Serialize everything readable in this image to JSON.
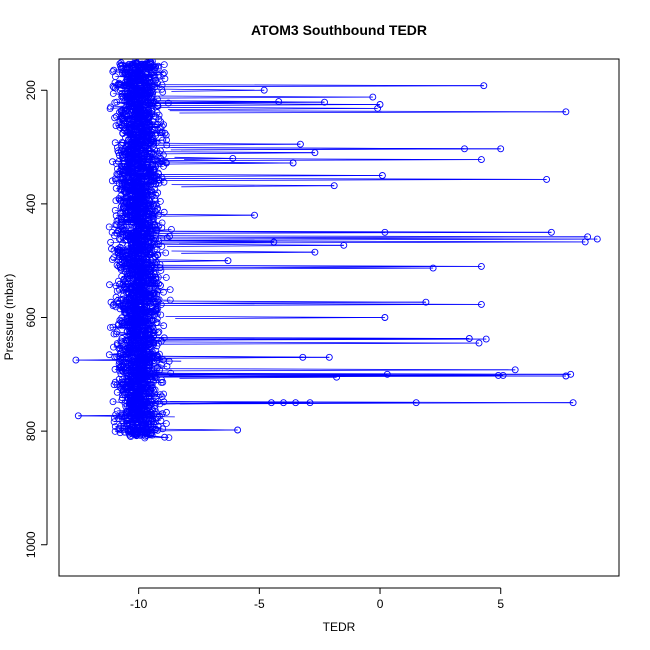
{
  "chart_data": {
    "type": "scatter",
    "title": "ATOM3 Southbound TEDR",
    "xlabel": "TEDR",
    "ylabel": "Pressure (mbar)",
    "xlim": [
      -13.3,
      9.9
    ],
    "ylim": [
      1055,
      145
    ],
    "y_reversed": true,
    "x_ticks": [
      -10,
      -5,
      0,
      5
    ],
    "y_ticks": [
      200,
      400,
      600,
      800,
      1000
    ],
    "x_tick_labels": [
      "-10",
      "-5",
      "0",
      "5"
    ],
    "y_tick_labels": [
      "200",
      "400",
      "600",
      "800",
      "1000"
    ],
    "grid": false,
    "legend": "none",
    "series_color": "#0000ff",
    "marker": "open-circle",
    "connected_lines": true,
    "bulk_region": {
      "x_range": [
        -12.3,
        -6.0
      ],
      "pressure_range": [
        150,
        810
      ],
      "note": "dense cloud of points"
    },
    "series": [
      {
        "values_summary": "individual TEDR vs pressure points",
        "points": [
          {
            "x": 4.3,
            "y": 192
          },
          {
            "x": -4.8,
            "y": 200
          },
          {
            "x": -0.3,
            "y": 212
          },
          {
            "x": -4.2,
            "y": 220
          },
          {
            "x": -2.3,
            "y": 221
          },
          {
            "x": 0.0,
            "y": 225
          },
          {
            "x": -0.1,
            "y": 232
          },
          {
            "x": 7.7,
            "y": 238
          },
          {
            "x": -3.3,
            "y": 295
          },
          {
            "x": 3.5,
            "y": 303
          },
          {
            "x": 5.0,
            "y": 303
          },
          {
            "x": -2.7,
            "y": 310
          },
          {
            "x": -6.1,
            "y": 320
          },
          {
            "x": 4.2,
            "y": 322
          },
          {
            "x": -3.6,
            "y": 328
          },
          {
            "x": 0.1,
            "y": 350
          },
          {
            "x": 6.9,
            "y": 357
          },
          {
            "x": -1.9,
            "y": 368
          },
          {
            "x": -5.2,
            "y": 420
          },
          {
            "x": 0.2,
            "y": 450
          },
          {
            "x": 7.1,
            "y": 450
          },
          {
            "x": 8.6,
            "y": 458
          },
          {
            "x": 8.5,
            "y": 467
          },
          {
            "x": 9.0,
            "y": 462
          },
          {
            "x": -4.4,
            "y": 467
          },
          {
            "x": -1.5,
            "y": 473
          },
          {
            "x": -2.7,
            "y": 485
          },
          {
            "x": -6.3,
            "y": 500
          },
          {
            "x": 4.2,
            "y": 510
          },
          {
            "x": 2.2,
            "y": 513
          },
          {
            "x": 1.9,
            "y": 573
          },
          {
            "x": 4.2,
            "y": 577
          },
          {
            "x": 0.2,
            "y": 600
          },
          {
            "x": 3.7,
            "y": 637
          },
          {
            "x": 4.4,
            "y": 638
          },
          {
            "x": 4.1,
            "y": 645
          },
          {
            "x": -3.2,
            "y": 670
          },
          {
            "x": -2.1,
            "y": 670
          },
          {
            "x": 5.6,
            "y": 692
          },
          {
            "x": 0.3,
            "y": 700
          },
          {
            "x": 4.9,
            "y": 702
          },
          {
            "x": 5.1,
            "y": 702
          },
          {
            "x": 7.9,
            "y": 700
          },
          {
            "x": 7.7,
            "y": 703
          },
          {
            "x": -1.8,
            "y": 705
          },
          {
            "x": -4.5,
            "y": 750
          },
          {
            "x": -4.0,
            "y": 750
          },
          {
            "x": -3.5,
            "y": 750
          },
          {
            "x": -2.9,
            "y": 750
          },
          {
            "x": 1.5,
            "y": 750
          },
          {
            "x": 8.0,
            "y": 750
          },
          {
            "x": -12.6,
            "y": 675
          },
          {
            "x": -12.5,
            "y": 773
          },
          {
            "x": -5.9,
            "y": 798
          }
        ]
      }
    ]
  }
}
